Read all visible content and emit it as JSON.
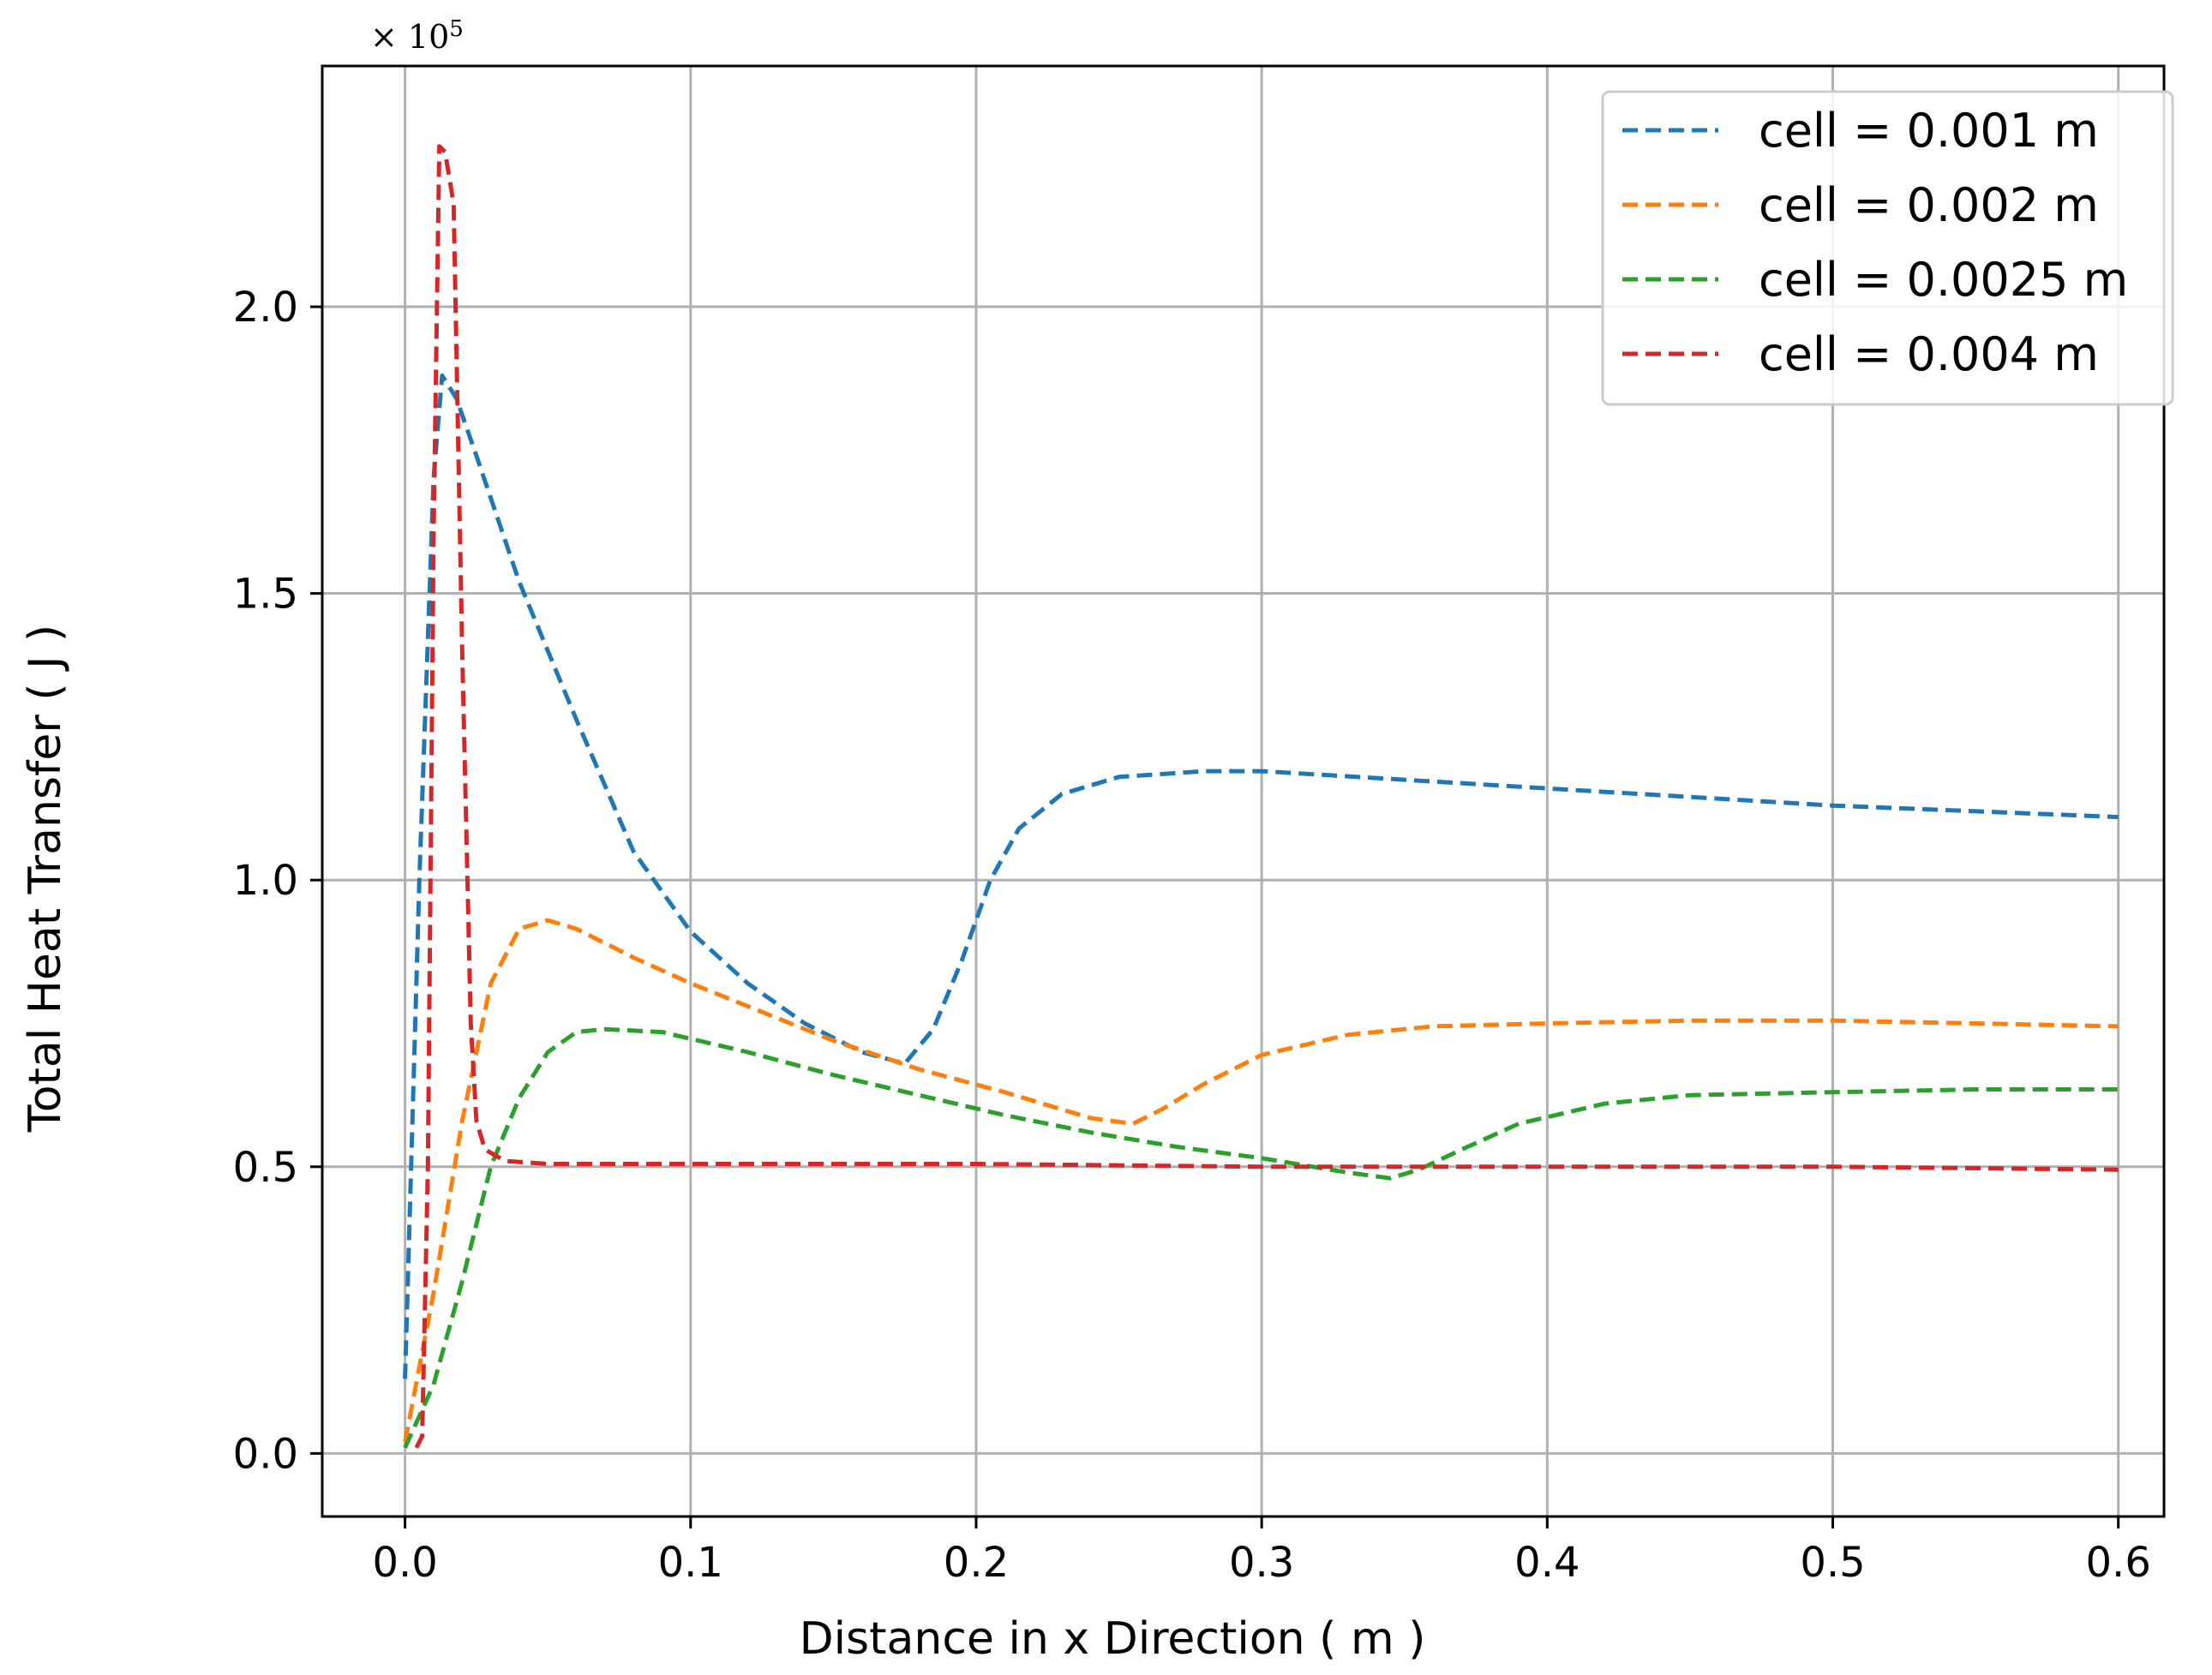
{
  "chart_data": {
    "type": "line",
    "title": "",
    "xlabel": "Distance in x Direction ( m )",
    "ylabel": "Total Heat Transfer ( J )",
    "y_multiplier_label": "× 10",
    "y_multiplier_exponent": "5",
    "xlim": [
      -0.029,
      0.616
    ],
    "ylim": [
      -0.11,
      2.42
    ],
    "x_ticks": [
      0.0,
      0.1,
      0.2,
      0.3,
      0.4,
      0.5,
      0.6
    ],
    "x_tick_labels": [
      "0.0",
      "0.1",
      "0.2",
      "0.3",
      "0.4",
      "0.5",
      "0.6"
    ],
    "y_ticks": [
      0.0,
      0.5,
      1.0,
      1.5,
      2.0
    ],
    "y_tick_labels": [
      "0.0",
      "0.5",
      "1.0",
      "1.5",
      "2.0"
    ],
    "grid": true,
    "legend_position": "top-right",
    "series": [
      {
        "name": "cell = 0.001 m",
        "color": "#1f77b4",
        "x": [
          0.0,
          0.005,
          0.01,
          0.013,
          0.018,
          0.025,
          0.04,
          0.06,
          0.08,
          0.1,
          0.12,
          0.14,
          0.16,
          0.175,
          0.185,
          0.195,
          0.205,
          0.215,
          0.23,
          0.25,
          0.28,
          0.3,
          0.35,
          0.4,
          0.45,
          0.5,
          0.55,
          0.6
        ],
        "y": [
          0.13,
          1.0,
          1.7,
          1.88,
          1.84,
          1.74,
          1.52,
          1.28,
          1.05,
          0.91,
          0.82,
          0.75,
          0.7,
          0.68,
          0.74,
          0.86,
          1.0,
          1.09,
          1.15,
          1.18,
          1.19,
          1.19,
          1.175,
          1.16,
          1.145,
          1.13,
          1.12,
          1.11
        ]
      },
      {
        "name": "cell = 0.002 m",
        "color": "#ff7f0e",
        "x": [
          0.0,
          0.01,
          0.02,
          0.03,
          0.04,
          0.05,
          0.06,
          0.08,
          0.1,
          0.12,
          0.15,
          0.18,
          0.21,
          0.24,
          0.255,
          0.265,
          0.28,
          0.3,
          0.33,
          0.36,
          0.4,
          0.45,
          0.5,
          0.55,
          0.6
        ],
        "y": [
          0.02,
          0.28,
          0.58,
          0.82,
          0.915,
          0.93,
          0.915,
          0.865,
          0.82,
          0.78,
          0.72,
          0.67,
          0.63,
          0.585,
          0.575,
          0.6,
          0.645,
          0.695,
          0.73,
          0.745,
          0.75,
          0.755,
          0.755,
          0.75,
          0.745
        ]
      },
      {
        "name": "cell = 0.0025 m",
        "color": "#2ca02c",
        "x": [
          0.0,
          0.01,
          0.02,
          0.03,
          0.04,
          0.05,
          0.06,
          0.07,
          0.09,
          0.12,
          0.15,
          0.18,
          0.21,
          0.24,
          0.27,
          0.3,
          0.33,
          0.345,
          0.355,
          0.37,
          0.39,
          0.42,
          0.45,
          0.5,
          0.55,
          0.6
        ],
        "y": [
          0.01,
          0.12,
          0.3,
          0.5,
          0.62,
          0.7,
          0.735,
          0.74,
          0.735,
          0.7,
          0.66,
          0.625,
          0.59,
          0.56,
          0.535,
          0.515,
          0.49,
          0.48,
          0.495,
          0.53,
          0.575,
          0.61,
          0.625,
          0.63,
          0.635,
          0.635
        ]
      },
      {
        "name": "cell = 0.004 m",
        "color": "#d62728",
        "x": [
          0.004,
          0.006,
          0.008,
          0.01,
          0.012,
          0.014,
          0.017,
          0.02,
          0.023,
          0.025,
          0.028,
          0.035,
          0.05,
          0.1,
          0.2,
          0.3,
          0.4,
          0.5,
          0.6
        ],
        "y": [
          0.01,
          0.03,
          0.5,
          1.6,
          2.28,
          2.27,
          2.18,
          1.4,
          0.75,
          0.58,
          0.53,
          0.51,
          0.505,
          0.505,
          0.505,
          0.5,
          0.5,
          0.5,
          0.495
        ]
      }
    ]
  }
}
